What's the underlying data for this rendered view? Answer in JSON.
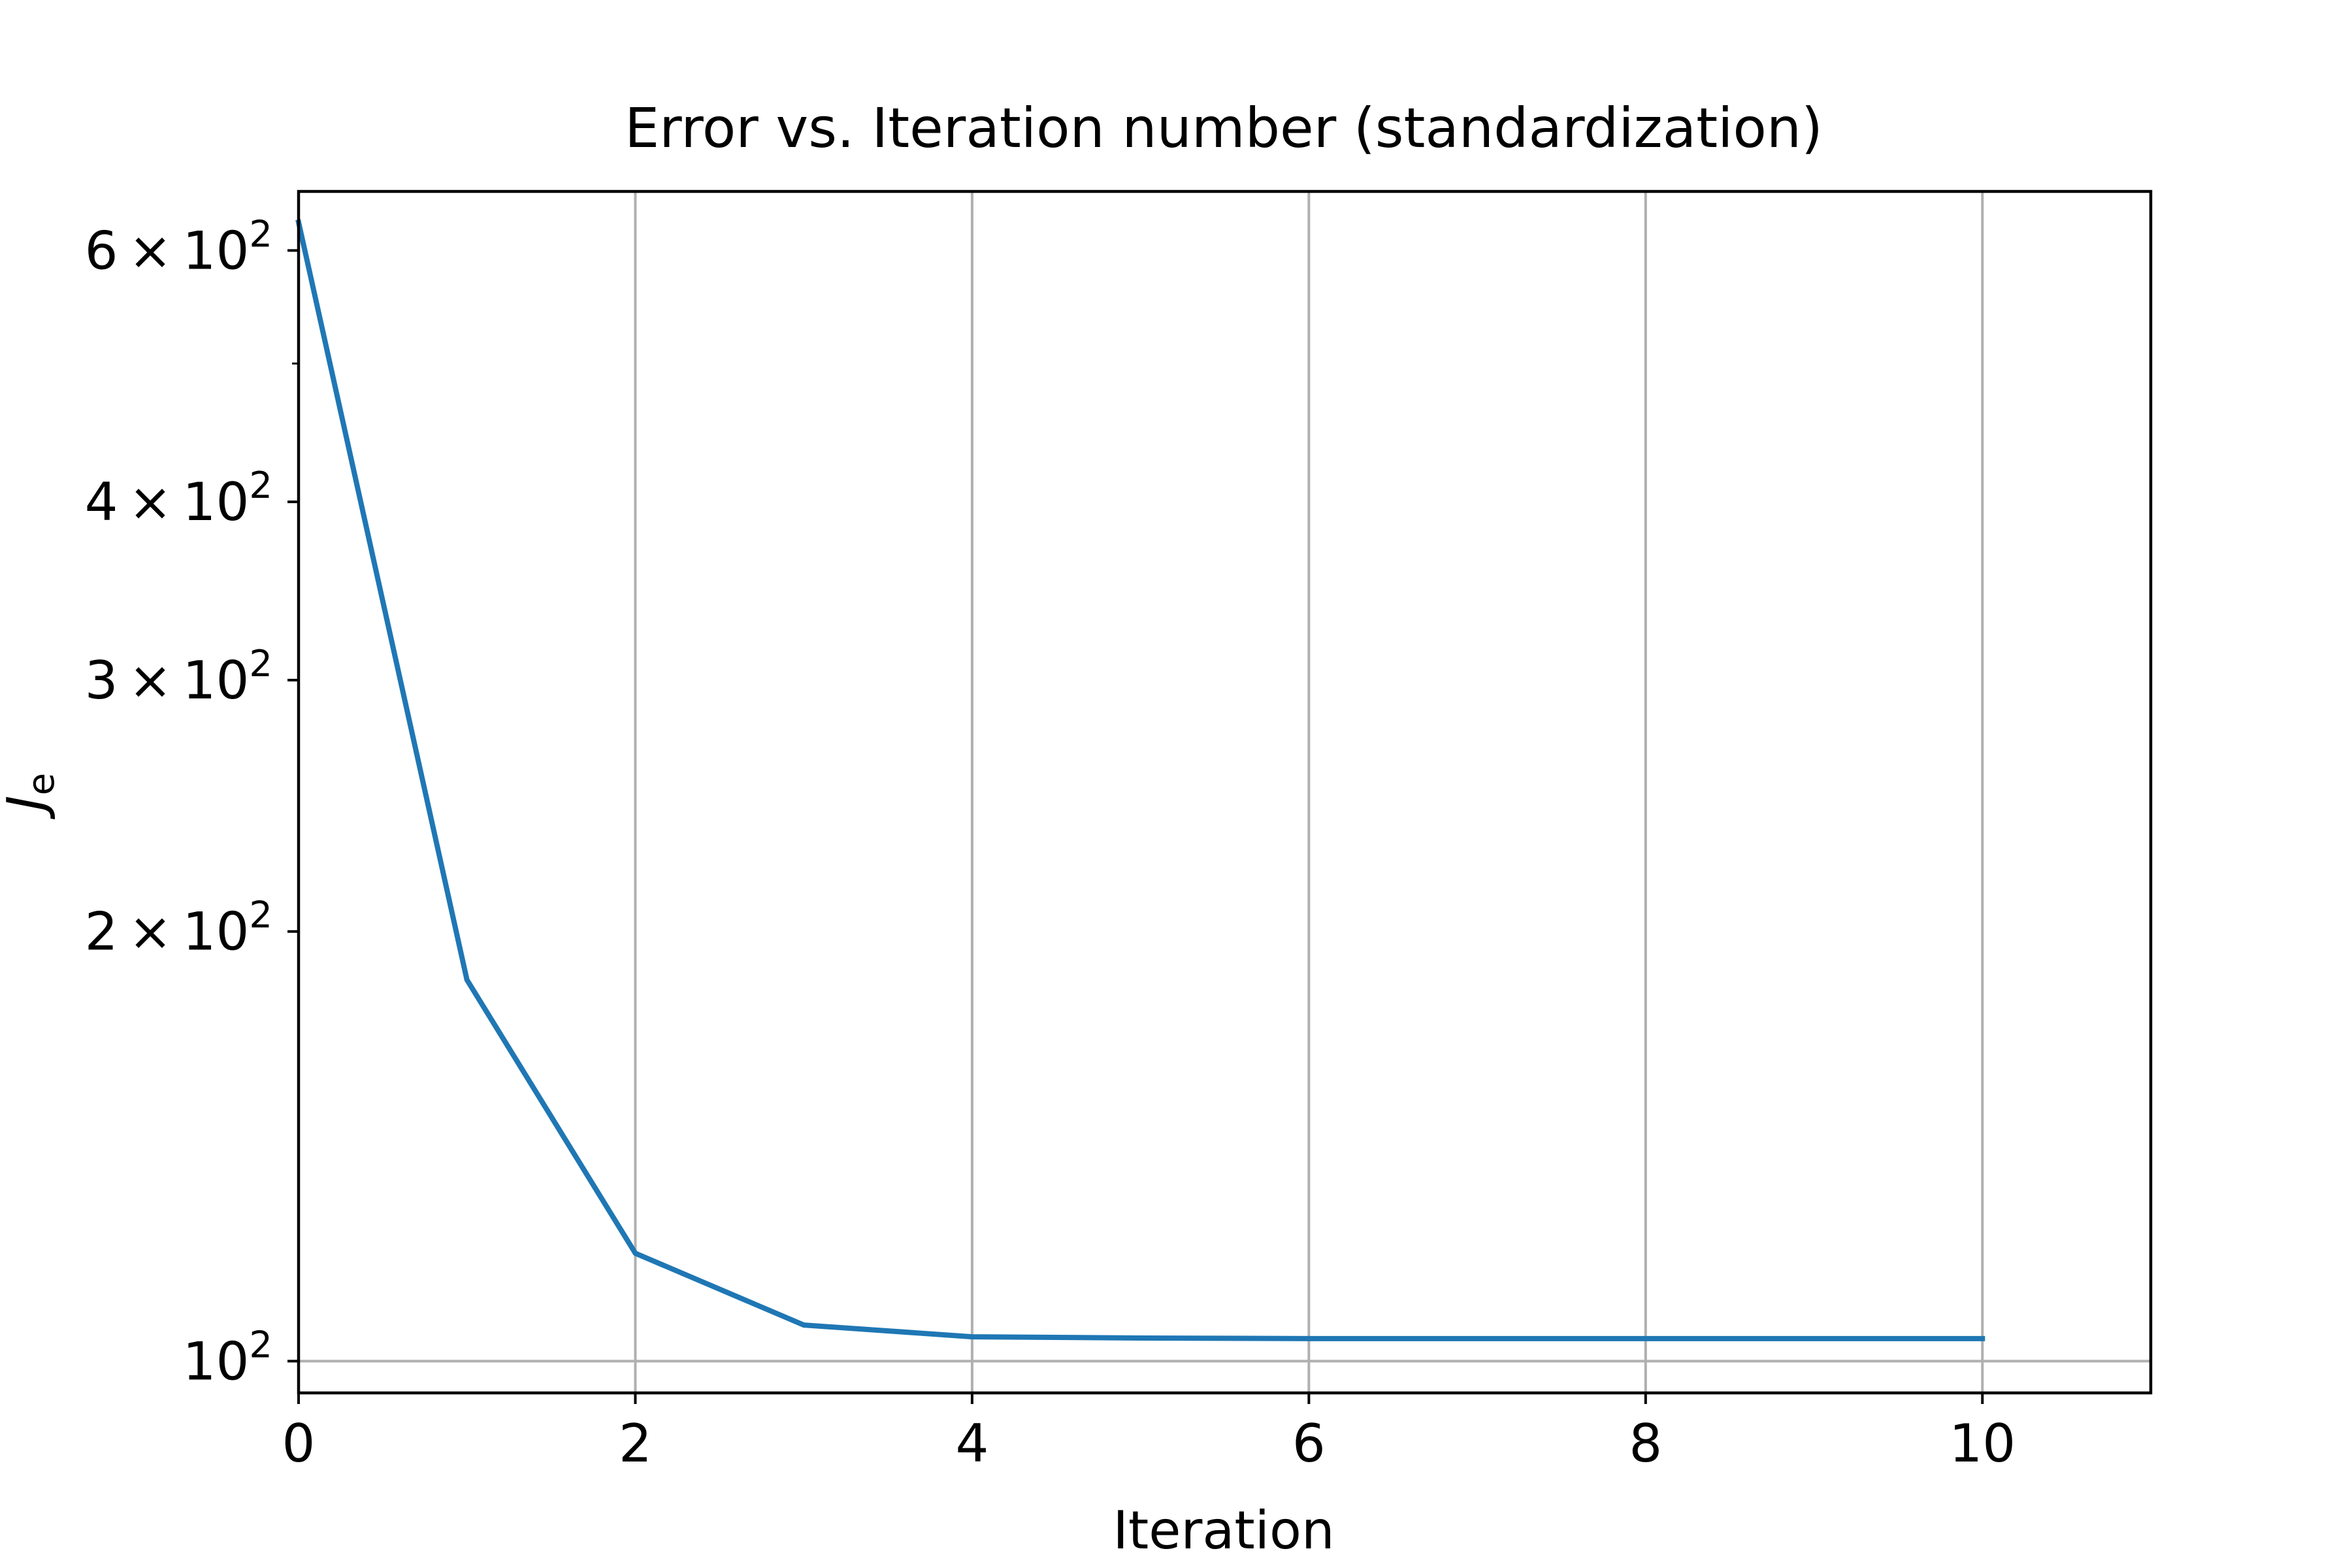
{
  "chart_data": {
    "type": "line",
    "title": "Error vs. Iteration number (standardization)",
    "xlabel": "Iteration",
    "ylabel_main": "J",
    "ylabel_sub": "e",
    "xlim": [
      0,
      11
    ],
    "ylim": [
      95,
      660
    ],
    "yscale": "log",
    "grid": true,
    "x_ticks": [
      {
        "value": 0,
        "label": "0"
      },
      {
        "value": 2,
        "label": "2"
      },
      {
        "value": 4,
        "label": "4"
      },
      {
        "value": 6,
        "label": "6"
      },
      {
        "value": 8,
        "label": "8"
      },
      {
        "value": 10,
        "label": "10"
      }
    ],
    "y_ticks": [
      {
        "value": 100,
        "mantissa": "",
        "base": "10",
        "exp": "2"
      },
      {
        "value": 200,
        "mantissa": "2 × 10",
        "base": "",
        "exp": "2"
      },
      {
        "value": 300,
        "mantissa": "3 × 10",
        "base": "",
        "exp": "2"
      },
      {
        "value": 400,
        "mantissa": "4 × 10",
        "base": "",
        "exp": "2"
      },
      {
        "value": 600,
        "mantissa": "6 × 10",
        "base": "",
        "exp": "2"
      }
    ],
    "y_minor_ticks": [
      500
    ],
    "series": [
      {
        "color": "#1f77b4",
        "x": [
          0,
          1,
          2,
          3,
          4,
          5,
          6,
          7,
          8,
          9,
          10
        ],
        "y": [
          628,
          185,
          119,
          106,
          104,
          103.8,
          103.7,
          103.7,
          103.7,
          103.7,
          103.7
        ]
      }
    ]
  }
}
